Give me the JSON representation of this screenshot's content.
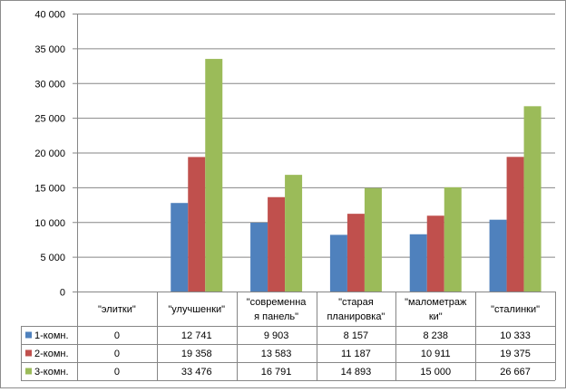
{
  "chart_data": {
    "type": "bar",
    "title": "",
    "xlabel": "",
    "ylabel": "",
    "ylim": [
      0,
      40000
    ],
    "yticks": [
      0,
      5000,
      10000,
      15000,
      20000,
      25000,
      30000,
      35000,
      40000
    ],
    "ytick_labels": [
      "0",
      "5 000",
      "10 000",
      "15 000",
      "20 000",
      "25 000",
      "30 000",
      "35 000",
      "40 000"
    ],
    "grid": true,
    "legend": "data-table",
    "categories": [
      [
        "\"элитки\""
      ],
      [
        "\"улучшенки\""
      ],
      [
        "\"современна",
        "я панель\""
      ],
      [
        "\"старая",
        "планировка\""
      ],
      [
        "\"малометраж",
        "ки\""
      ],
      [
        "\"сталинки\""
      ]
    ],
    "series": [
      {
        "name": "1-комн.",
        "color": "#4f81bd",
        "values": [
          0,
          12741,
          9903,
          8157,
          8238,
          10333
        ],
        "labels": [
          "0",
          "12 741",
          "9 903",
          "8 157",
          "8 238",
          "10 333"
        ]
      },
      {
        "name": "2-комн.",
        "color": "#c0504d",
        "values": [
          0,
          19358,
          13583,
          11187,
          10911,
          19375
        ],
        "labels": [
          "0",
          "19 358",
          "13 583",
          "11 187",
          "10 911",
          "19 375"
        ]
      },
      {
        "name": "3-комн.",
        "color": "#9bbb59",
        "values": [
          0,
          33476,
          16791,
          14893,
          15000,
          26667
        ],
        "labels": [
          "0",
          "33 476",
          "16 791",
          "14 893",
          "15 000",
          "26 667"
        ]
      }
    ]
  }
}
